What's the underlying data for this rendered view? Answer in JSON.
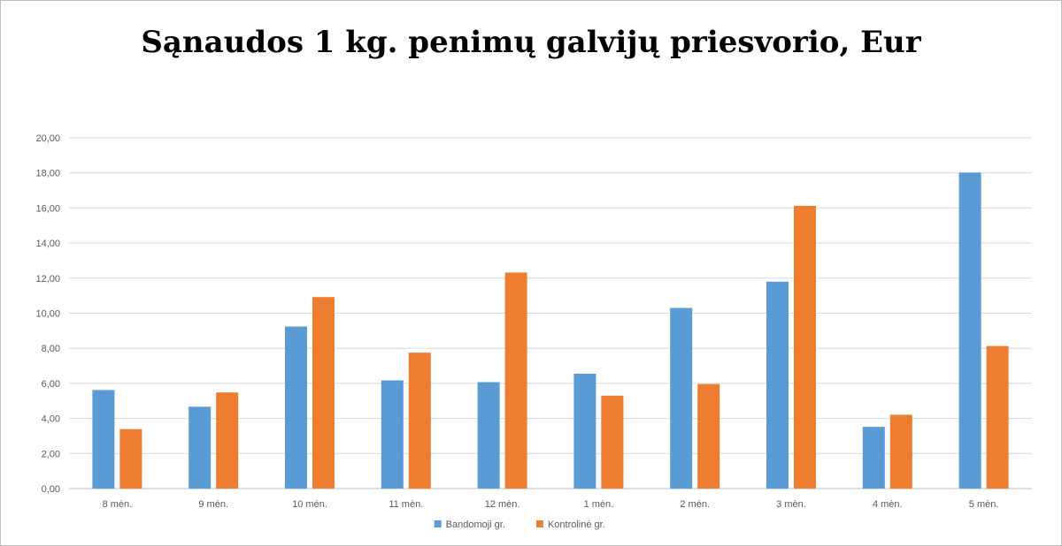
{
  "chart_data": {
    "type": "bar",
    "title": "Sąnaudos 1 kg. penimų galvijų priesvorio, Eur",
    "categories": [
      "8 mėn.",
      "9 mėn.",
      "10 mėn.",
      "11 mėn.",
      "12 mėn.",
      "1 mėn.",
      "2 mėn.",
      "3 mėn.",
      "4 mėn.",
      "5 mėn."
    ],
    "series": [
      {
        "name": "Bandomoji gr.",
        "color": "#5b9bd5",
        "values": [
          5.62,
          4.67,
          9.24,
          6.17,
          6.07,
          6.55,
          10.3,
          11.8,
          3.52,
          18.02
        ]
      },
      {
        "name": "Kontrolinė gr.",
        "color": "#ed7d31",
        "values": [
          3.39,
          5.48,
          10.92,
          7.75,
          12.32,
          5.3,
          5.96,
          16.12,
          4.21,
          8.13
        ]
      }
    ],
    "ylim": [
      0,
      20
    ],
    "yticks": [
      "0,00",
      "2,00",
      "4,00",
      "6,00",
      "8,00",
      "10,00",
      "12,00",
      "14,00",
      "16,00",
      "18,00",
      "20,00"
    ],
    "grid": true,
    "legend_position": "bottom"
  }
}
